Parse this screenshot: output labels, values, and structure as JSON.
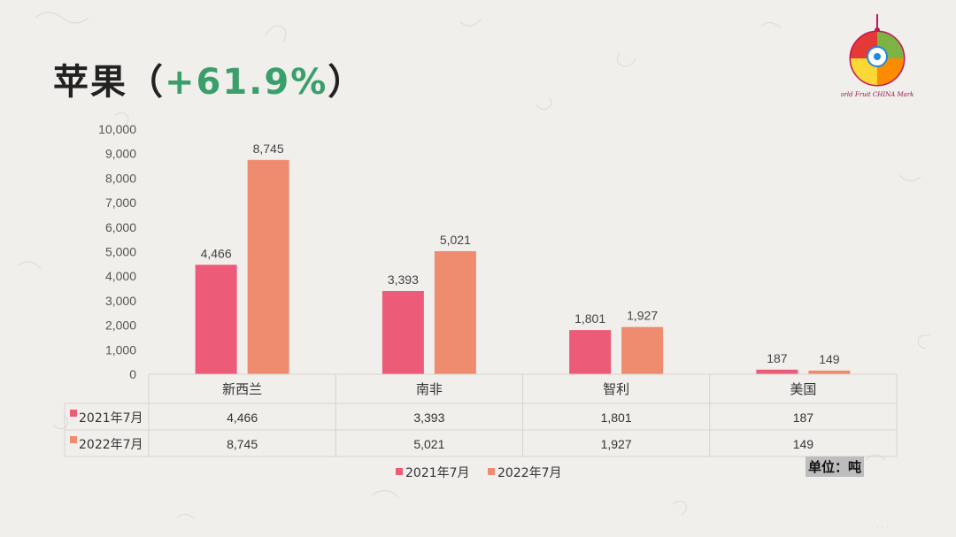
{
  "header": {
    "title_main": "苹果",
    "paren_open": "（",
    "title_pct": "+61.9%",
    "paren_close": "）"
  },
  "logo": {
    "icon": "world-fruit-china-market-logo-icon",
    "text": "World Fruit CHINA Market"
  },
  "unit_label": "单位：吨",
  "colors": {
    "series_2021": "#ec5b78",
    "series_2022": "#ef8b6e",
    "accent": "#3a9f6a",
    "grid": "#d6d3cf"
  },
  "chart_data": {
    "type": "bar",
    "title": "苹果（+61.9%）",
    "categories": [
      "新西兰",
      "南非",
      "智利",
      "美国"
    ],
    "series": [
      {
        "name": "2021年7月",
        "values": [
          4466,
          3393,
          1801,
          187
        ],
        "labels": [
          "4,466",
          "3,393",
          "1,801",
          "187"
        ]
      },
      {
        "name": "2022年7月",
        "values": [
          8745,
          5021,
          1927,
          149
        ],
        "labels": [
          "8,745",
          "5,021",
          "1,927",
          "149"
        ]
      }
    ],
    "ylim": [
      0,
      10000
    ],
    "yticks": [
      0,
      1000,
      2000,
      3000,
      4000,
      5000,
      6000,
      7000,
      8000,
      9000,
      10000
    ],
    "ytick_labels": [
      "0",
      "1,000",
      "2,000",
      "3,000",
      "4,000",
      "5,000",
      "6,000",
      "7,000",
      "8,000",
      "9,000",
      "10,000"
    ],
    "xlabel": "",
    "ylabel": "",
    "data_table": true,
    "legend": "bottom"
  }
}
